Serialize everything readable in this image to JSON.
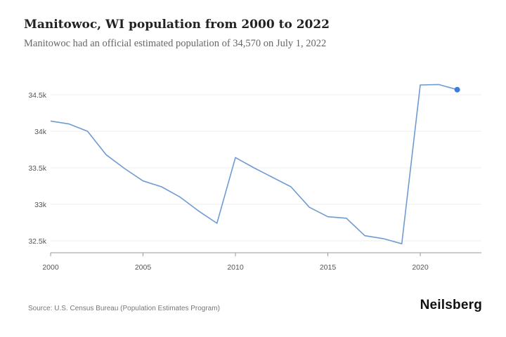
{
  "chart_data": {
    "type": "line",
    "title": "Manitowoc, WI population from 2000 to 2022",
    "subtitle": "Manitowoc had an official estimated population of 34,570 on July 1, 2022",
    "xlabel": "",
    "ylabel": "",
    "x": [
      2000,
      2001,
      2002,
      2003,
      2004,
      2005,
      2006,
      2007,
      2008,
      2009,
      2010,
      2011,
      2012,
      2013,
      2014,
      2015,
      2016,
      2017,
      2018,
      2019,
      2020,
      2021,
      2022
    ],
    "series": [
      {
        "name": "Population",
        "values": [
          34140,
          34100,
          34000,
          33680,
          33490,
          33320,
          33240,
          33100,
          32910,
          32740,
          33640,
          33500,
          33370,
          33240,
          32960,
          32830,
          32810,
          32570,
          32530,
          32460,
          34635,
          34640,
          34570
        ]
      }
    ],
    "xlim": [
      2000,
      2023.3
    ],
    "ylim": [
      32350,
      34850
    ],
    "xticks": [
      2000,
      2005,
      2010,
      2015,
      2020
    ],
    "xtick_labels": [
      "2000",
      "2005",
      "2010",
      "2015",
      "2020"
    ],
    "yticks": [
      32500,
      33000,
      33500,
      34000,
      34500
    ],
    "ytick_labels": [
      "32.5k",
      "33k",
      "33.5k",
      "34k",
      "34.5k"
    ],
    "grid": true,
    "line_color": "#6f9bd1",
    "marker_color": "#3b7dd8"
  },
  "footer": {
    "source": "Source: U.S. Census Bureau (Population Estimates Program)",
    "logo": "Neilsberg"
  }
}
